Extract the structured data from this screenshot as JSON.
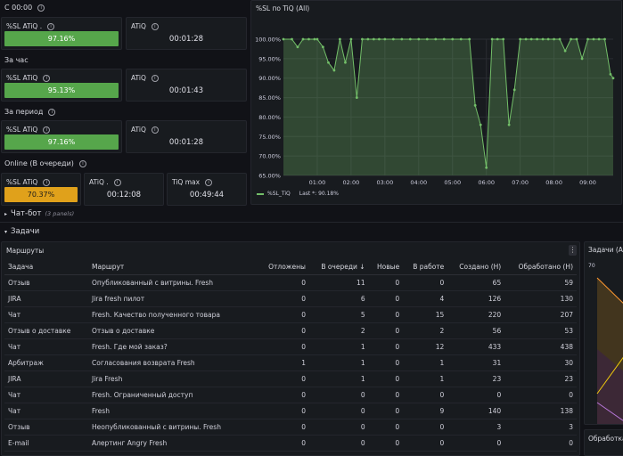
{
  "sections": {
    "c_0000": "С 00:00",
    "za_chas": "За час",
    "za_period": "За период",
    "online": "Online (В очереди)"
  },
  "stats": [
    {
      "sl_label": "%SL ATiQ .",
      "sl_value": "97.16%",
      "atiq_label": "ATiQ",
      "atiq_value": "00:01:28"
    },
    {
      "sl_label": "%SL ATiQ",
      "sl_value": "95.13%",
      "atiq_label": "ATiQ",
      "atiq_value": "00:01:43"
    },
    {
      "sl_label": "%SL ATiQ",
      "sl_value": "97.16%",
      "atiq_label": "ATiQ",
      "atiq_value": "00:01:28"
    }
  ],
  "online": {
    "sl_label": "%SL ATiQ",
    "sl_value": "70.37%",
    "sl_fraction": 0.7037,
    "atiq_label": "ATiQ .",
    "atiq_value": "00:12:08",
    "tiq_label": "TiQ max",
    "tiq_value": "00:49:44"
  },
  "colors": {
    "green": "#56a64b",
    "orange": "#e0a11b",
    "line": "#73bf69"
  },
  "chart_data": {
    "type": "area",
    "title": "%SL по TiQ (All)",
    "x_ticks": [
      "01:00",
      "02:00",
      "03:00",
      "04:00",
      "05:00",
      "06:00",
      "07:00",
      "08:00",
      "09:00"
    ],
    "y_ticks": [
      "100.00%",
      "95.00%",
      "90.00%",
      "85.00%",
      "80.00%",
      "75.00%",
      "70.00%",
      "65.00%"
    ],
    "ylim": [
      65,
      100
    ],
    "xlim": [
      0,
      9.75
    ],
    "x": [
      0,
      0.25,
      0.42,
      0.58,
      0.75,
      0.92,
      1.0,
      1.17,
      1.33,
      1.5,
      1.67,
      1.83,
      2.0,
      2.17,
      2.33,
      2.5,
      2.67,
      2.83,
      3.0,
      3.25,
      3.5,
      3.75,
      4.0,
      4.25,
      4.5,
      4.75,
      5.0,
      5.25,
      5.5,
      5.67,
      5.83,
      6.0,
      6.17,
      6.33,
      6.5,
      6.67,
      6.83,
      7.0,
      7.17,
      7.33,
      7.5,
      7.67,
      7.83,
      8.0,
      8.17,
      8.33,
      8.5,
      8.67,
      8.83,
      9.0,
      9.17,
      9.33,
      9.5,
      9.67,
      9.75
    ],
    "series": [
      {
        "name": "%SL_TiQ",
        "values": [
          100,
          100,
          98,
          100,
          100,
          100,
          100,
          98,
          94,
          92,
          100,
          94,
          100,
          85,
          100,
          100,
          100,
          100,
          100,
          100,
          100,
          100,
          100,
          100,
          100,
          100,
          100,
          100,
          100,
          83,
          78,
          67,
          100,
          100,
          100,
          78,
          87,
          100,
          100,
          100,
          100,
          100,
          100,
          100,
          100,
          97,
          100,
          100,
          95,
          100,
          100,
          100,
          100,
          91,
          90
        ]
      }
    ],
    "legend": {
      "name": "%SL_TiQ",
      "last": "Last *: 90.18%"
    }
  },
  "collapsed_rows": {
    "chat_bot": "Чат-бот",
    "chat_bot_sub": "(3 panels)",
    "zadachi": "Задачи"
  },
  "routes": {
    "title": "Маршруты",
    "columns": [
      "Задача",
      "Маршрут",
      "Отложены",
      "В очереди ↓",
      "Новые",
      "В работе",
      "Создано (Н)",
      "Обработано (Н)"
    ],
    "rows": [
      [
        "Отзыв",
        "Опубликованный с витрины. Fresh",
        "0",
        "11",
        "0",
        "0",
        "65",
        "59"
      ],
      [
        "JIRA",
        "Jira fresh пилот",
        "0",
        "6",
        "0",
        "4",
        "126",
        "130"
      ],
      [
        "Чат",
        "Fresh. Качество полученного товара",
        "0",
        "5",
        "0",
        "15",
        "220",
        "207"
      ],
      [
        "Отзыв о доставке",
        "Отзыв о доставке",
        "0",
        "2",
        "0",
        "2",
        "56",
        "53"
      ],
      [
        "Чат",
        "Fresh. Где мой заказ?",
        "0",
        "1",
        "0",
        "12",
        "433",
        "438"
      ],
      [
        "Арбитраж",
        "Согласования возврата Fresh",
        "1",
        "1",
        "0",
        "1",
        "31",
        "30"
      ],
      [
        "JIRA",
        "Jira Fresh",
        "0",
        "1",
        "0",
        "1",
        "23",
        "23"
      ],
      [
        "Чат",
        "Fresh. Ограниченный доступ",
        "0",
        "0",
        "0",
        "0",
        "0",
        "0"
      ],
      [
        "Чат",
        "Fresh",
        "0",
        "0",
        "0",
        "9",
        "140",
        "138"
      ],
      [
        "Отзыв",
        "Неопубликованный с витрины. Fresh",
        "0",
        "0",
        "0",
        "0",
        "3",
        "3"
      ],
      [
        "E-mail",
        "Алертинг Angry Fresh",
        "0",
        "0",
        "0",
        "0",
        "0",
        "0"
      ]
    ]
  },
  "right_panel": {
    "title": "Задачи (All",
    "y_tick": "70",
    "title2": "Обработка"
  }
}
